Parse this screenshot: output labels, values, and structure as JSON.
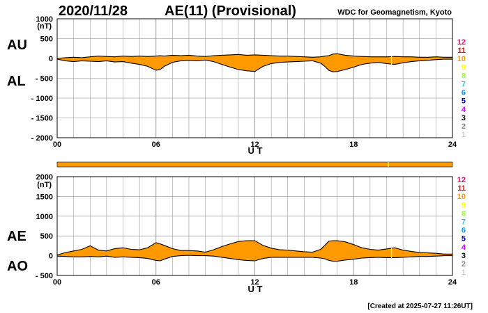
{
  "header": {
    "date": "2020/11/28",
    "title": "AE(11) (Provisional)",
    "source": "WDC for Geomagnetism, Kyoto"
  },
  "footer": {
    "created": "[Created at 2025-07-27 11:26UT]"
  },
  "colors": {
    "fill": "#ff9900",
    "bar": "#ff9900",
    "grid": "#888888",
    "scale": [
      "#ff00ff",
      "#ff0000",
      "#ff9900",
      "#ffff00",
      "#99ff00",
      "#00ff00",
      "#00ffff",
      "#0066ff",
      "#0000ff",
      "#cc00ff",
      "#000000",
      "#777777",
      "#cccccc"
    ]
  },
  "legend": {
    "labels": [
      "12",
      "11",
      "10",
      "9",
      "8",
      "7",
      "6",
      "5",
      "4",
      "3",
      "2",
      "1"
    ],
    "colors": [
      "#ff0066",
      "#ff0000",
      "#ff9900",
      "#ffff00",
      "#99ff33",
      "#33cccc",
      "#0099ff",
      "#0000cc",
      "#cc00ff",
      "#000000",
      "#888888",
      "#cccccc"
    ]
  },
  "chart_data": [
    {
      "type": "area",
      "name": "AU-AL",
      "series_labels": [
        "AU",
        "AL"
      ],
      "units_label": "(nT)",
      "xlabel": "U T",
      "xticks": [
        "00",
        "06",
        "12",
        "18",
        "24"
      ],
      "xlim": [
        0,
        24
      ],
      "ylim": [
        -2000,
        1000
      ],
      "yticks": [
        1000,
        500,
        0,
        -500,
        -1000,
        -1500,
        -2000
      ],
      "ytick_labels": [
        "1000",
        "500",
        "0",
        "- 500",
        "- 1000",
        "- 1500",
        "- 2000"
      ],
      "x": [
        0,
        0.5,
        1,
        1.5,
        2,
        2.5,
        3,
        3.5,
        4,
        4.5,
        5,
        5.5,
        6,
        6.25,
        6.5,
        7,
        7.5,
        8,
        8.5,
        9,
        9.5,
        10,
        10.5,
        11,
        11.5,
        12,
        12.5,
        13,
        13.5,
        14,
        14.5,
        15,
        15.5,
        16,
        16.25,
        16.5,
        16.75,
        17,
        17.5,
        18,
        18.5,
        19,
        19.5,
        20,
        20.5,
        21,
        21.5,
        22,
        22.5,
        23,
        23.5,
        24
      ],
      "upper": [
        0,
        20,
        30,
        20,
        40,
        60,
        50,
        40,
        60,
        50,
        60,
        50,
        60,
        70,
        60,
        80,
        70,
        80,
        60,
        50,
        70,
        80,
        90,
        100,
        80,
        90,
        80,
        70,
        60,
        60,
        50,
        40,
        30,
        40,
        60,
        70,
        110,
        120,
        80,
        60,
        50,
        40,
        40,
        40,
        50,
        40,
        40,
        30,
        30,
        40,
        30,
        30
      ],
      "lower": [
        -20,
        -60,
        -80,
        -60,
        -70,
        -80,
        -60,
        -90,
        -80,
        -120,
        -150,
        -200,
        -300,
        -280,
        -200,
        -100,
        -60,
        -50,
        -60,
        -40,
        -80,
        -150,
        -220,
        -280,
        -310,
        -330,
        -200,
        -130,
        -100,
        -90,
        -80,
        -70,
        -60,
        -120,
        -200,
        -300,
        -340,
        -330,
        -280,
        -220,
        -150,
        -120,
        -100,
        -130,
        -150,
        -110,
        -80,
        -60,
        -50,
        -30,
        -20,
        -20
      ]
    },
    {
      "type": "area",
      "name": "AE-AO",
      "series_labels": [
        "AE",
        "AO"
      ],
      "units_label": "(nT)",
      "xlabel": "U T",
      "xticks": [
        "00",
        "06",
        "12",
        "18",
        "24"
      ],
      "xlim": [
        0,
        24
      ],
      "ylim": [
        -500,
        2000
      ],
      "yticks": [
        2000,
        1500,
        1000,
        500,
        0,
        -500
      ],
      "ytick_labels": [
        "2000",
        "1500",
        "1000",
        "500",
        "0",
        "- 500"
      ],
      "x": [
        0,
        0.5,
        1,
        1.5,
        2,
        2.5,
        3,
        3.5,
        4,
        4.5,
        5,
        5.5,
        6,
        6.25,
        6.5,
        7,
        7.5,
        8,
        8.5,
        9,
        9.5,
        10,
        10.5,
        11,
        11.5,
        12,
        12.5,
        13,
        13.5,
        14,
        14.5,
        15,
        15.5,
        16,
        16.25,
        16.5,
        16.75,
        17,
        17.5,
        18,
        18.5,
        19,
        19.5,
        20,
        20.5,
        21,
        21.5,
        22,
        22.5,
        23,
        23.5,
        24
      ],
      "upper": [
        20,
        80,
        120,
        160,
        250,
        140,
        120,
        180,
        200,
        160,
        150,
        200,
        330,
        300,
        260,
        180,
        130,
        130,
        120,
        90,
        150,
        230,
        300,
        360,
        380,
        380,
        260,
        190,
        150,
        140,
        120,
        100,
        90,
        160,
        260,
        370,
        380,
        380,
        350,
        280,
        200,
        160,
        140,
        170,
        200,
        140,
        110,
        80,
        70,
        60,
        40,
        40
      ],
      "lower": [
        -10,
        -20,
        -30,
        -30,
        -20,
        -30,
        -10,
        -40,
        -30,
        -40,
        -50,
        -70,
        -120,
        -130,
        -90,
        -20,
        0,
        10,
        0,
        0,
        -10,
        -40,
        -70,
        -100,
        -120,
        -130,
        -70,
        -40,
        -40,
        -40,
        -40,
        -40,
        -40,
        -60,
        -80,
        -120,
        -140,
        -140,
        -110,
        -90,
        -60,
        -50,
        -40,
        -50,
        -50,
        -40,
        -30,
        -20,
        -20,
        -10,
        0,
        0
      ]
    }
  ]
}
